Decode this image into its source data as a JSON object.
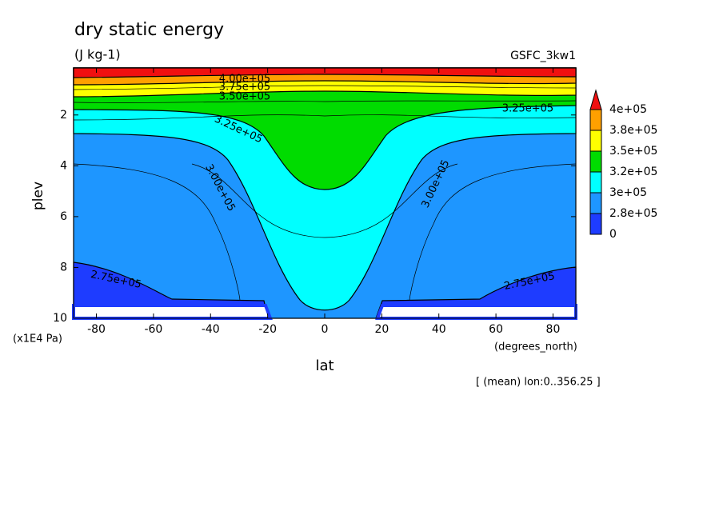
{
  "chart_data": {
    "type": "contour",
    "title": "dry static energy",
    "units": "(J kg-1)",
    "source": "GSFC_3kw1",
    "xlabel": "lat",
    "xunits": "(degrees_north)",
    "ylabel": "plev",
    "yunits": "(x1E4 Pa)",
    "note": "[ (mean) lon:0..356.25 ]",
    "xlim": [
      -88,
      88
    ],
    "xticks": [
      -80,
      -60,
      -40,
      -20,
      0,
      20,
      40,
      60,
      80
    ],
    "ylim": [
      10,
      0.15
    ],
    "yticks": [
      2,
      4,
      6,
      8,
      10
    ],
    "colorbar": {
      "levels": [
        {
          "value": 0,
          "label": "0"
        },
        {
          "value": 280000,
          "label": "2.8e+05"
        },
        {
          "value": 300000,
          "label": "3e+05"
        },
        {
          "value": 320000,
          "label": "3.2e+05"
        },
        {
          "value": 350000,
          "label": "3.5e+05"
        },
        {
          "value": 380000,
          "label": "3.8e+05"
        },
        {
          "value": 400000,
          "label": "4e+05"
        }
      ],
      "colors": [
        "#1e3cff",
        "#1e96ff",
        "#00ffff",
        "#00dc00",
        "#ffff00",
        "#ffa000",
        "#f01010"
      ]
    },
    "contour_labels": [
      {
        "value": 400000,
        "label": "4.00e+05"
      },
      {
        "value": 375000,
        "label": "3.75e+05"
      },
      {
        "value": 350000,
        "label": "3.50e+05"
      },
      {
        "value": 325000,
        "label": "3.25e+05"
      },
      {
        "value": 325000,
        "label": "3.25e+05"
      },
      {
        "value": 300000,
        "label": "3.00e+05"
      },
      {
        "value": 300000,
        "label": "3.00e+05"
      },
      {
        "value": 275000,
        "label": "2.75e+05"
      },
      {
        "value": 275000,
        "label": "2.75e+05"
      }
    ]
  }
}
